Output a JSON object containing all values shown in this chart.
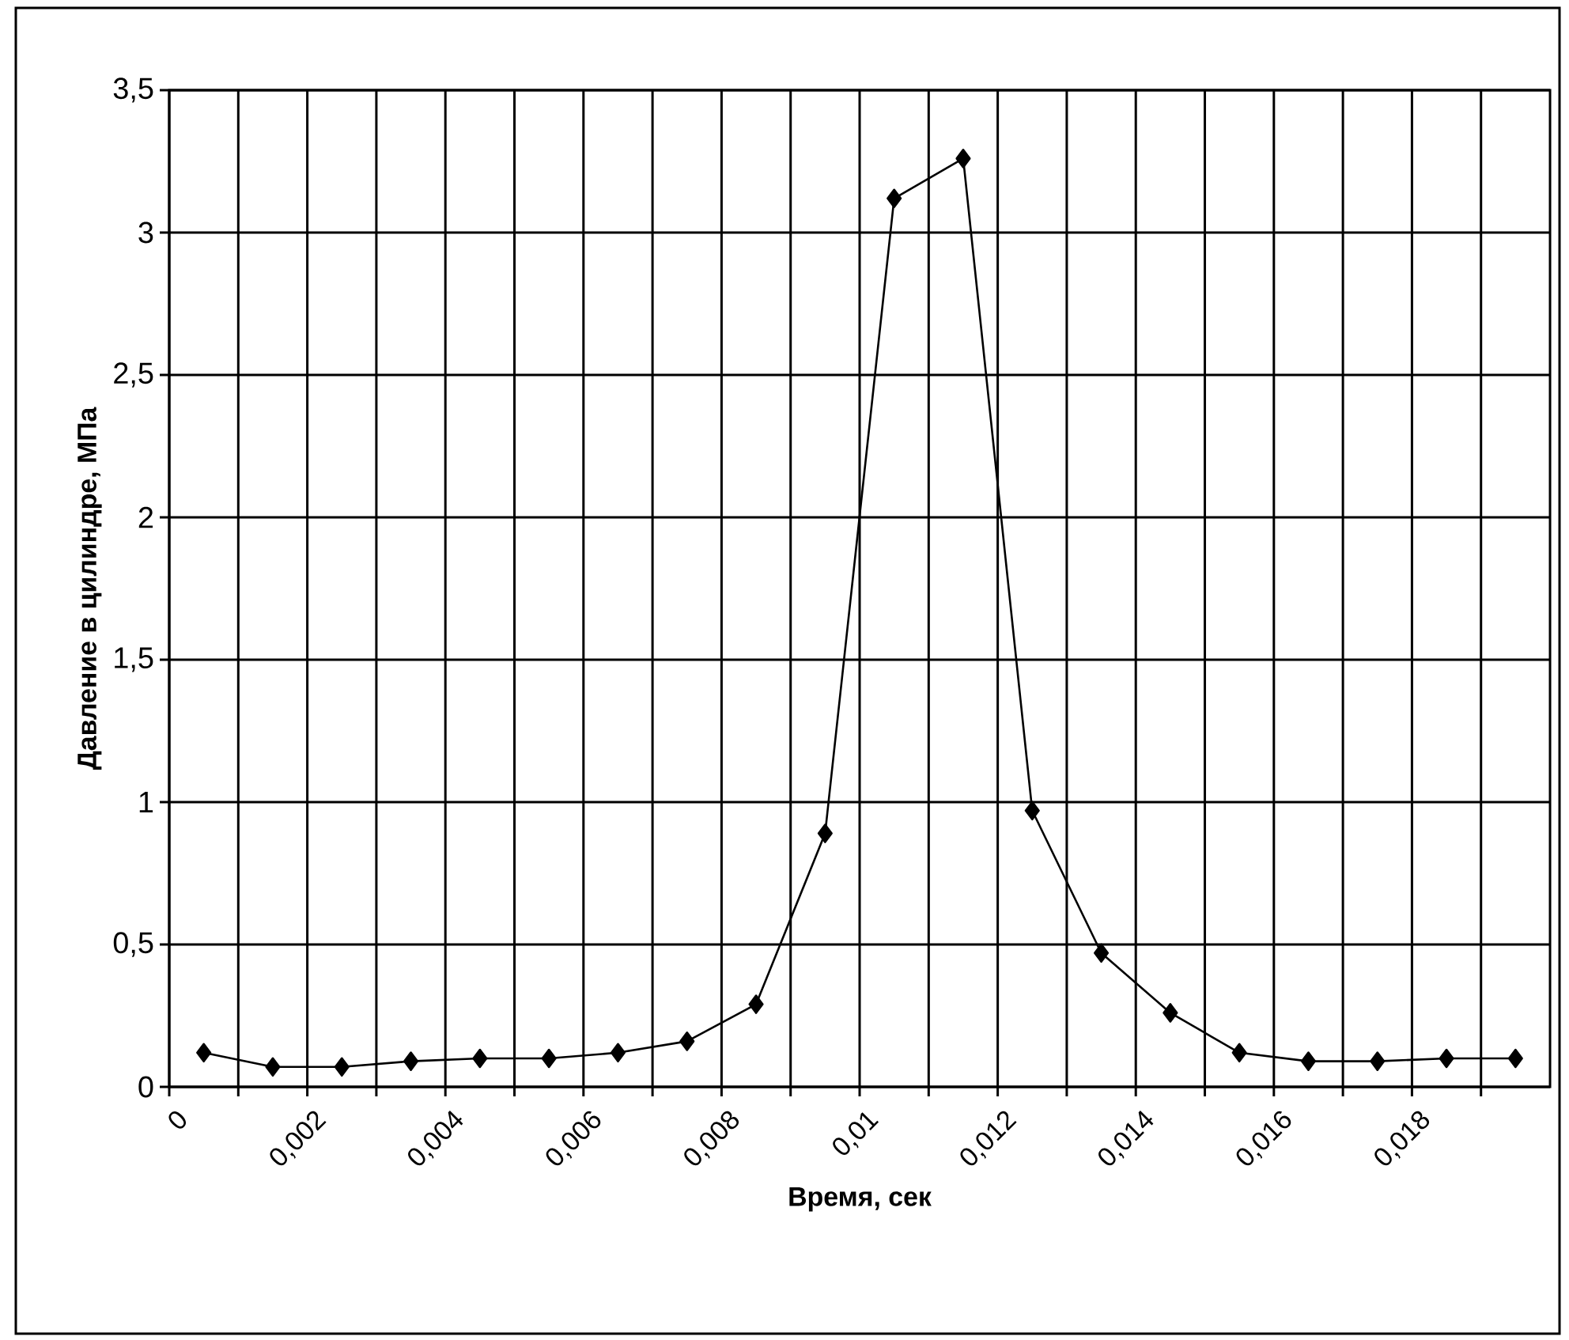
{
  "chart_data": {
    "type": "line",
    "xlabel": "Время, сек",
    "ylabel": "Давление в цилиндре, МПа",
    "x": [
      0.0005,
      0.0015,
      0.0025,
      0.0035,
      0.0045,
      0.0055,
      0.0065,
      0.0075,
      0.0085,
      0.0095,
      0.0105,
      0.0115,
      0.0125,
      0.0135,
      0.0145,
      0.0155,
      0.0165,
      0.0175,
      0.0185,
      0.0195
    ],
    "series": [
      {
        "color": "#000000",
        "values": [
          0.12,
          0.07,
          0.07,
          0.09,
          0.1,
          0.1,
          0.12,
          0.16,
          0.29,
          0.89,
          3.12,
          3.26,
          0.97,
          0.47,
          0.26,
          0.12,
          0.09,
          0.09,
          0.1,
          0.1
        ]
      }
    ],
    "xlim": [
      0,
      0.02
    ],
    "xticks": [
      0,
      {
        "value": 0.001,
        "label": null
      },
      {
        "value": 0.002,
        "label": "0,002"
      },
      {
        "value": 0.003,
        "label": null
      },
      {
        "value": 0.004,
        "label": "0,004"
      },
      {
        "value": 0.005,
        "label": null
      },
      {
        "value": 0.006,
        "label": "0,006"
      },
      {
        "value": 0.007,
        "label": null
      },
      {
        "value": 0.008,
        "label": "0,008"
      },
      {
        "value": 0.009,
        "label": null
      },
      {
        "value": 0.01,
        "label": "0,01"
      },
      {
        "value": 0.011,
        "label": null
      },
      {
        "value": 0.012,
        "label": "0,012"
      },
      {
        "value": 0.013,
        "label": null
      },
      {
        "value": 0.014,
        "label": "0,014"
      },
      {
        "value": 0.015,
        "label": null
      },
      {
        "value": 0.016,
        "label": "0,016"
      },
      {
        "value": 0.017,
        "label": null
      },
      {
        "value": 0.018,
        "label": "0,018"
      },
      {
        "value": 0.019,
        "label": null
      }
    ],
    "ylim": [
      0,
      3.5
    ],
    "yticks": [
      0,
      {
        "value": 0.5,
        "label": "0,5"
      },
      1,
      {
        "value": 1.5,
        "label": "1,5"
      },
      2,
      {
        "value": 2.5,
        "label": "2,5"
      },
      3,
      {
        "value": 3.5,
        "label": "3,5"
      }
    ],
    "grid": true,
    "marker": "diamond",
    "line_style": "solid"
  }
}
